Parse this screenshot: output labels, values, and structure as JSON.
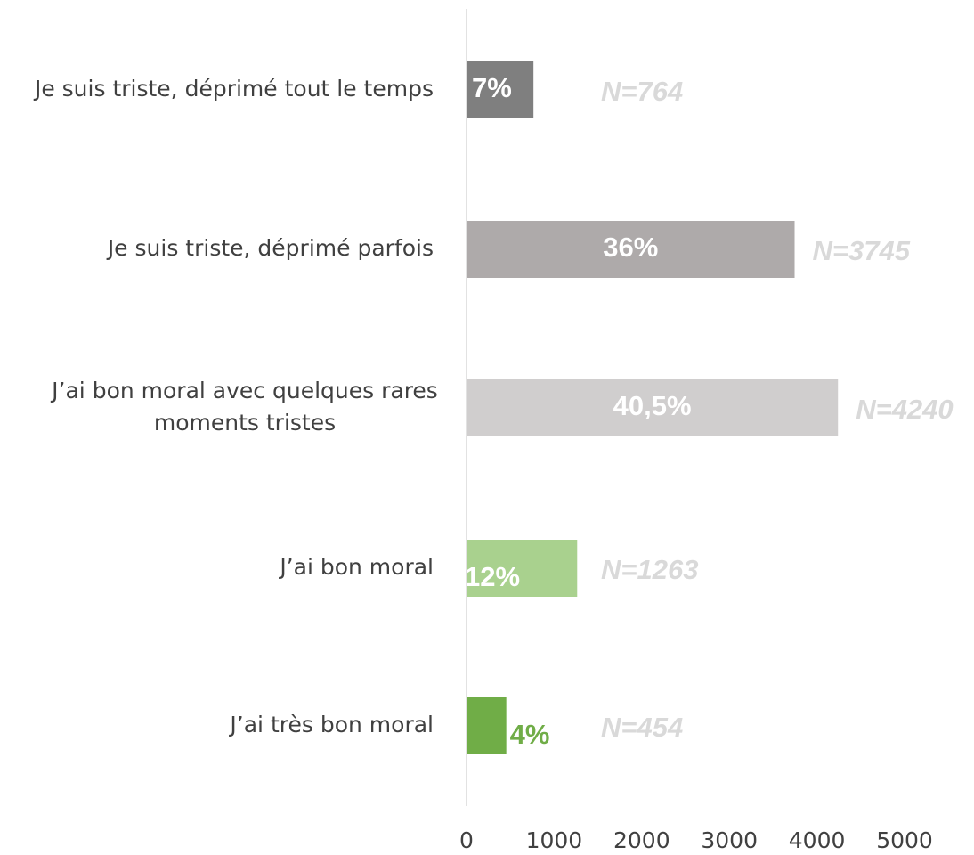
{
  "chart_data": {
    "type": "hbar",
    "categories": [
      "Je suis triste, déprimé tout le temps",
      "Je suis triste, déprimé parfois",
      "J’ai bon moral avec quelques rares\nmoments tristes",
      "J’ai bon moral",
      "J’ai très bon moral"
    ],
    "values": [
      764,
      3745,
      4240,
      1263,
      454
    ],
    "value_labels": [
      "N=764",
      "N=3745",
      "N=4240",
      "N=1263",
      "N=454"
    ],
    "share_labels": [
      "7%",
      "36%",
      "40,5%",
      "12%",
      "4%"
    ],
    "colors": [
      "#7f7f7f",
      "#aeaaaa",
      "#d0cece",
      "#a9d18e",
      "#70ad47"
    ],
    "share_label_colors": [
      "#ffffff",
      "#ffffff",
      "#ffffff",
      "#ffffff",
      "#70ad47"
    ],
    "xlim": [
      0,
      5000
    ],
    "xticks": [
      0,
      1000,
      2000,
      3000,
      4000,
      5000
    ],
    "grid": false
  }
}
